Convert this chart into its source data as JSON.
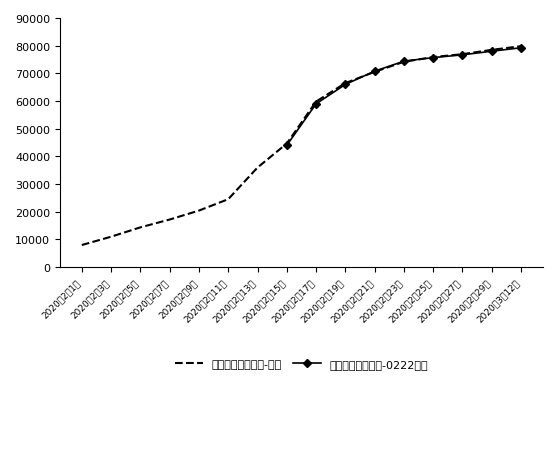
{
  "dates": [
    "2020年2月1日",
    "2020年2月3日",
    "2020年2月5日",
    "2020年2月7日",
    "2020年2月9日",
    "2020年2月11日",
    "2020年2月13日",
    "2020年2月15日",
    "2020年2月17日",
    "2020年2月19日",
    "2020年2月21日",
    "2020年2月23日",
    "2020年2月25日",
    "2020年2月27日",
    "2020年2月29日",
    "2020年3月12日"
  ],
  "actual_values": [
    8000,
    11000,
    14380,
    17205,
    20438,
    24553,
    35982,
    44653,
    59804,
    66492,
    70548,
    74185,
    75891,
    76936,
    78497,
    79824
  ],
  "predicted_values": [
    null,
    null,
    null,
    null,
    null,
    null,
    null,
    44000,
    59000,
    66000,
    70800,
    74400,
    75700,
    76700,
    78000,
    79251
  ],
  "line_color": "#000000",
  "ylim": [
    0,
    90000
  ],
  "yticks": [
    0,
    10000,
    20000,
    30000,
    40000,
    50000,
    60000,
    70000,
    80000,
    90000
  ],
  "legend_actual": "全国累计确诊人数-真实",
  "legend_predicted": "全国累计确诊人数-0222预测",
  "background_color": "#ffffff",
  "figsize": [
    5.58,
    4.6
  ],
  "dpi": 100
}
